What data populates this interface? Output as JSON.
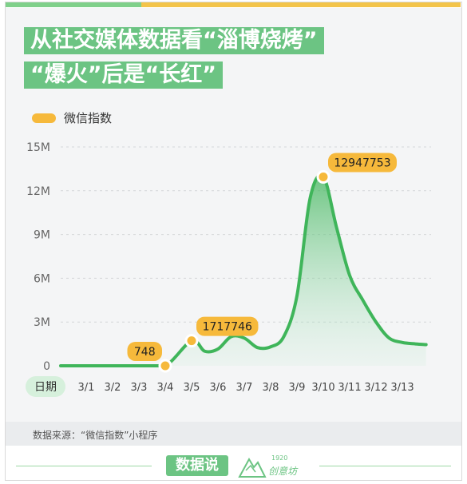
{
  "title": {
    "line1": "从社交媒体数据看“淄博烧烤”",
    "line2": "“爆火”后是“长红”"
  },
  "source": "数据来源：“微信指数”小程序",
  "brand": {
    "main": "数据说",
    "year": "1920",
    "name": "创意坊"
  },
  "colors": {
    "line": "#3fb55a",
    "fill": "#9ddfae",
    "accent": "#f6b93b",
    "title_bg": "#6cc483"
  },
  "chart_data": {
    "type": "area",
    "legend": "微信指数",
    "x_axis_title": "日期",
    "categories": [
      "3/1",
      "3/2",
      "3/3",
      "3/4",
      "3/5",
      "3/6",
      "3/7",
      "3/8",
      "3/9",
      "3/10",
      "3/11",
      "3/12",
      "3/13"
    ],
    "y_ticks": [
      "15M",
      "12M",
      "9M",
      "6M",
      "3M",
      "0"
    ],
    "y_tick_values": [
      15000000,
      12000000,
      9000000,
      6000000,
      3000000,
      0
    ],
    "ylim": [
      0,
      15000000
    ],
    "grid": true,
    "series": [
      {
        "name": "微信指数",
        "points": [
          {
            "x": 0.0,
            "y": 0
          },
          {
            "x": 1.0,
            "y": 0
          },
          {
            "x": 2.0,
            "y": 0
          },
          {
            "x": 3.0,
            "y": 748
          },
          {
            "x": 4.0,
            "y": 1717746
          },
          {
            "x": 4.5,
            "y": 1000000
          },
          {
            "x": 5.0,
            "y": 1150000
          },
          {
            "x": 5.5,
            "y": 2000000
          },
          {
            "x": 6.0,
            "y": 1900000
          },
          {
            "x": 6.5,
            "y": 1250000
          },
          {
            "x": 7.0,
            "y": 1300000
          },
          {
            "x": 7.5,
            "y": 2000000
          },
          {
            "x": 8.0,
            "y": 4800000
          },
          {
            "x": 8.5,
            "y": 11500000
          },
          {
            "x": 9.0,
            "y": 12947753
          },
          {
            "x": 9.5,
            "y": 9500000
          },
          {
            "x": 10.0,
            "y": 6200000
          },
          {
            "x": 10.5,
            "y": 4500000
          },
          {
            "x": 11.0,
            "y": 3000000
          },
          {
            "x": 11.5,
            "y": 1900000
          },
          {
            "x": 12.0,
            "y": 1600000
          },
          {
            "x": 12.5,
            "y": 1500000
          },
          {
            "x": 12.9,
            "y": 1450000
          }
        ]
      }
    ],
    "annotations": [
      {
        "label": "748",
        "x": 3.0,
        "y": 748,
        "side": "left"
      },
      {
        "label": "1717746",
        "x": 4.0,
        "y": 1717746,
        "side": "right"
      },
      {
        "label": "12947753",
        "x": 9.0,
        "y": 12947753,
        "side": "right"
      }
    ]
  }
}
